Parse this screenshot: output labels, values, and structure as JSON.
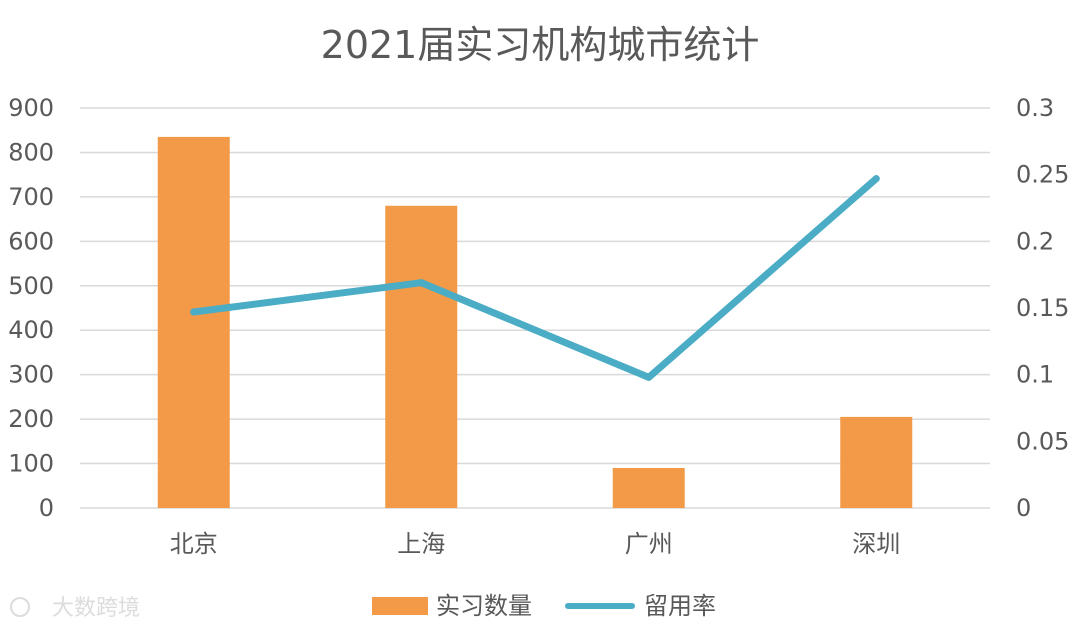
{
  "chart_data": {
    "type": "bar+line",
    "title": "2021届实习机构城市统计",
    "categories": [
      "北京",
      "上海",
      "广州",
      "深圳"
    ],
    "series": [
      {
        "name": "实习数量",
        "type": "bar",
        "axis": "left",
        "values": [
          835,
          680,
          90,
          205
        ]
      },
      {
        "name": "留用率",
        "type": "line",
        "axis": "right",
        "values": [
          0.147,
          0.169,
          0.098,
          0.247
        ]
      }
    ],
    "y_left": {
      "range": [
        0,
        900
      ],
      "ticks": [
        "900",
        "800",
        "700",
        "600",
        "500",
        "400",
        "300",
        "200",
        "100",
        "0"
      ]
    },
    "y_right": {
      "range": [
        0,
        0.3
      ],
      "ticks": [
        "0.3",
        "0.25",
        "0.2",
        "0.15",
        "0.1",
        "0.05",
        "0"
      ]
    },
    "grid": true,
    "legend_position": "bottom",
    "colors": {
      "bar": "#f29a48",
      "line": "#4aacc5",
      "grid": "#d9d9d9",
      "text": "#595959"
    }
  },
  "watermark": {
    "text": "大数跨境"
  }
}
